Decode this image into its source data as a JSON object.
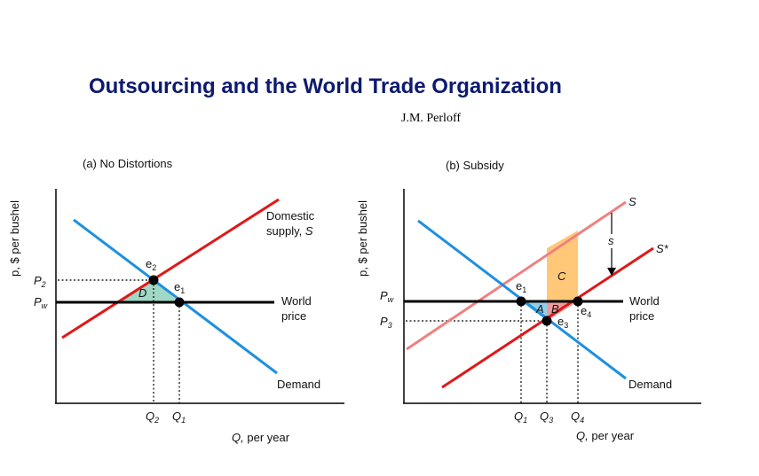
{
  "header": {
    "title": "Outsourcing and the World Trade Organization",
    "author": "J.M. Perloff"
  },
  "colors": {
    "supply": "#e01818",
    "supply_original": "#f08080",
    "demand": "#1e90e0",
    "world_price": "#000000",
    "area_D": "#9fd8c4",
    "area_C": "#ffc878",
    "area_A": "#8fd0e8",
    "area_B": "#ef9a9a",
    "title": "#0d1a70"
  },
  "panel_a": {
    "title": "(a) No Distortions",
    "ylabel": "p, $ per bushel",
    "xlabel_var": "Q,",
    "xlabel_unit": "per year",
    "y_tick_p2": "P",
    "y_tick_p2_sub": "2",
    "y_tick_pw": "P",
    "y_tick_pw_sub": "w",
    "x_tick_q2": "Q",
    "x_tick_q2_sub": "2",
    "x_tick_q1": "Q",
    "x_tick_q1_sub": "1",
    "supply_label_1": "Domestic",
    "supply_label_2": "supply,",
    "supply_label_var": "S",
    "world_label_1": "World",
    "world_label_2": "price",
    "demand_label": "Demand",
    "point_e2": "e",
    "point_e2_sub": "2",
    "point_e1": "e",
    "point_e1_sub": "1",
    "area_D": "D"
  },
  "panel_b": {
    "title": "(b) Subsidy",
    "ylabel": "p, $ per bushel",
    "xlabel_var": "Q,",
    "xlabel_unit": "per year",
    "y_tick_pw": "P",
    "y_tick_pw_sub": "w",
    "y_tick_p3": "P",
    "y_tick_p3_sub": "3",
    "x_tick_q1": "Q",
    "x_tick_q1_sub": "1",
    "x_tick_q3": "Q",
    "x_tick_q3_sub": "3",
    "x_tick_q4": "Q",
    "x_tick_q4_sub": "4",
    "supply_label": "S",
    "supply_star_label": "S*",
    "subsidy_label": "s",
    "world_label_1": "World",
    "world_label_2": "price",
    "demand_label": "Demand",
    "point_e1": "e",
    "point_e1_sub": "1",
    "point_e3": "e",
    "point_e3_sub": "3",
    "point_e4": "e",
    "point_e4_sub": "4",
    "area_A": "A",
    "area_B": "B",
    "area_C": "C"
  }
}
